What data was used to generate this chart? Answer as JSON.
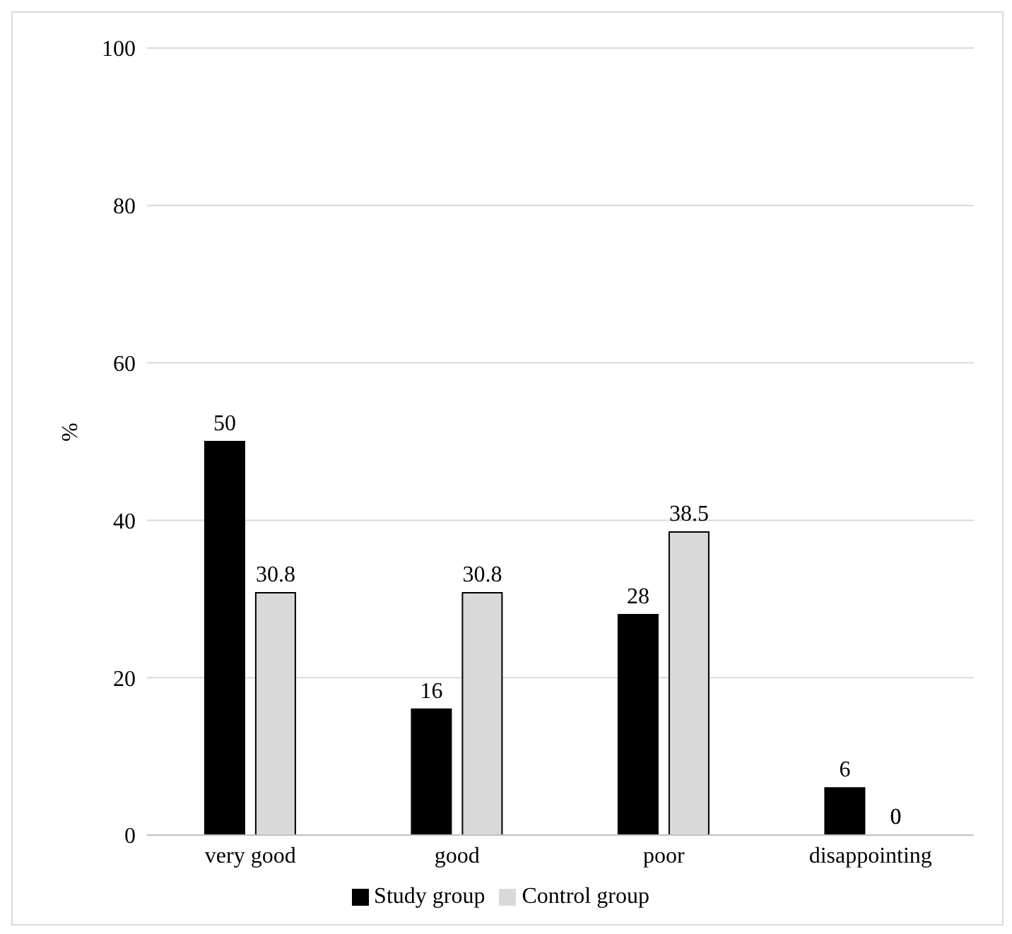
{
  "chart_data": {
    "type": "bar",
    "ylabel": "%",
    "categories": [
      "very good",
      "good",
      "poor",
      "disappointing"
    ],
    "series": [
      {
        "name": "Study group",
        "color": "#000000",
        "values": [
          50,
          16,
          28,
          6
        ]
      },
      {
        "name": "Control group",
        "color": "#d9d9d9",
        "values": [
          30.8,
          30.8,
          38.5,
          0
        ]
      }
    ],
    "ylim": [
      0,
      100
    ],
    "yticks": [
      0,
      20,
      40,
      60,
      80,
      100
    ],
    "grid": "y",
    "legend": "bottom",
    "data_labels": true
  }
}
